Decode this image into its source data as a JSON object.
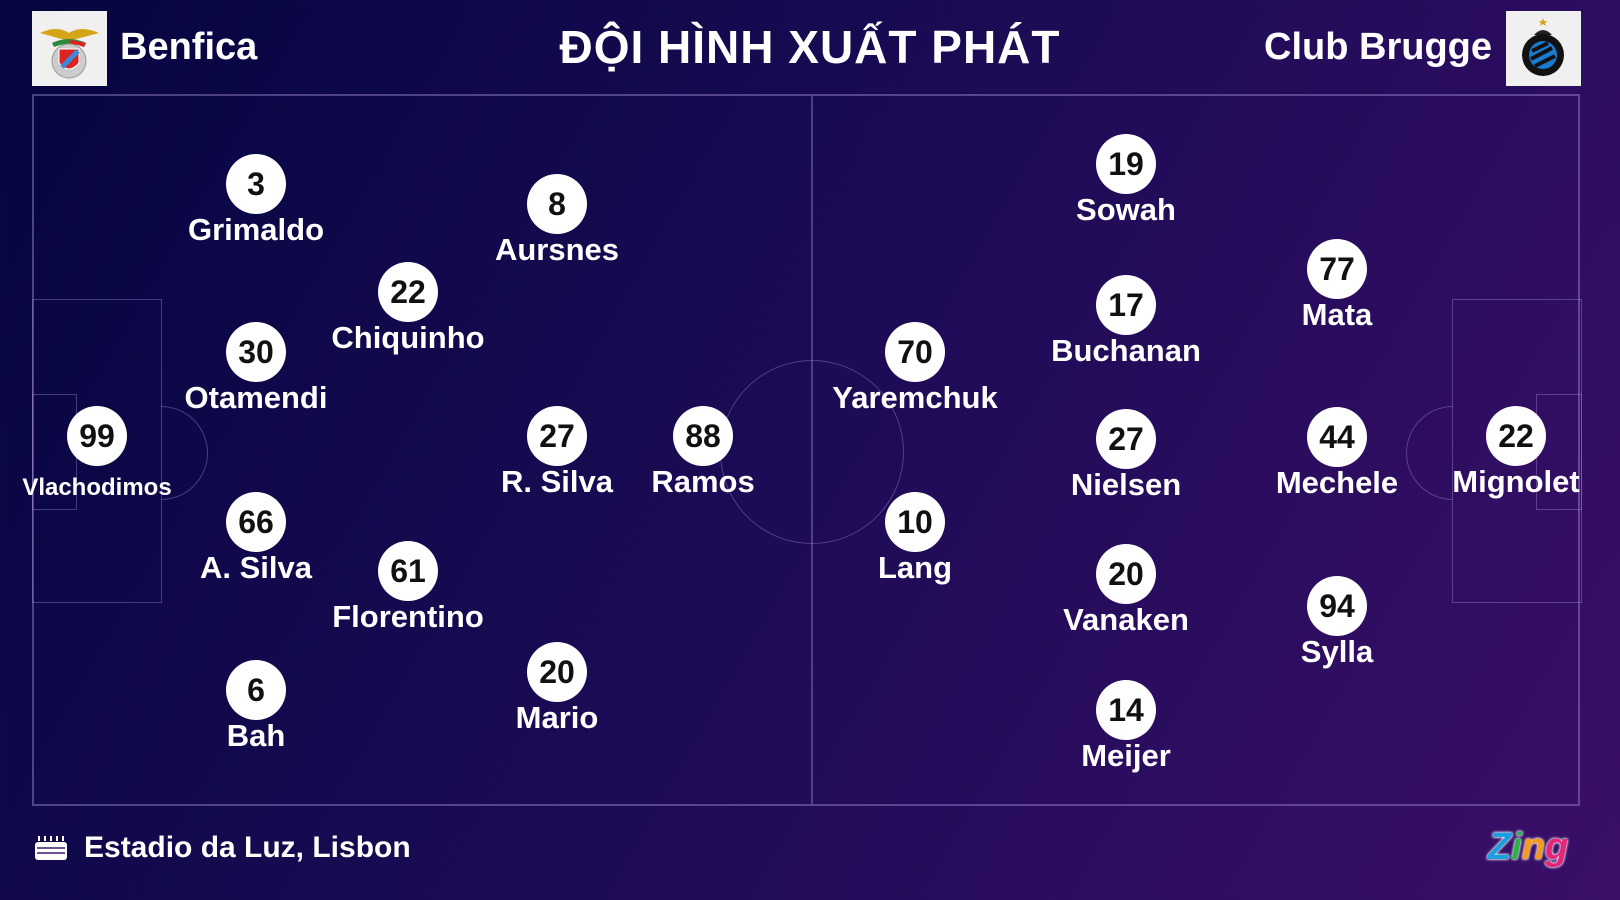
{
  "header": {
    "title": "ĐỘI HÌNH XUẤT PHÁT",
    "home_team": "Benfica",
    "away_team": "Club Brugge"
  },
  "home_players": [
    {
      "number": "99",
      "name": "Vlachodimos"
    },
    {
      "number": "3",
      "name": "Grimaldo"
    },
    {
      "number": "30",
      "name": "Otamendi"
    },
    {
      "number": "66",
      "name": "A. Silva"
    },
    {
      "number": "6",
      "name": "Bah"
    },
    {
      "number": "22",
      "name": "Chiquinho"
    },
    {
      "number": "61",
      "name": "Florentino"
    },
    {
      "number": "8",
      "name": "Aursnes"
    },
    {
      "number": "27",
      "name": "R. Silva"
    },
    {
      "number": "20",
      "name": "Mario"
    },
    {
      "number": "88",
      "name": "Ramos"
    }
  ],
  "away_players": [
    {
      "number": "70",
      "name": "Yaremchuk"
    },
    {
      "number": "10",
      "name": "Lang"
    },
    {
      "number": "19",
      "name": "Sowah"
    },
    {
      "number": "17",
      "name": "Buchanan"
    },
    {
      "number": "27",
      "name": "Nielsen"
    },
    {
      "number": "20",
      "name": "Vanaken"
    },
    {
      "number": "14",
      "name": "Meijer"
    },
    {
      "number": "77",
      "name": "Mata"
    },
    {
      "number": "44",
      "name": "Mechele"
    },
    {
      "number": "94",
      "name": "Sylla"
    },
    {
      "number": "22",
      "name": "Mignolet"
    }
  ],
  "footer": {
    "venue": "Estadio da Luz, Lisbon",
    "venue_icon": "stadium-icon",
    "brand": "Zing"
  },
  "colors": {
    "bg_start": "#05053f",
    "bg_end": "#3a0f68",
    "pitch_lines": "#a08cd2"
  }
}
